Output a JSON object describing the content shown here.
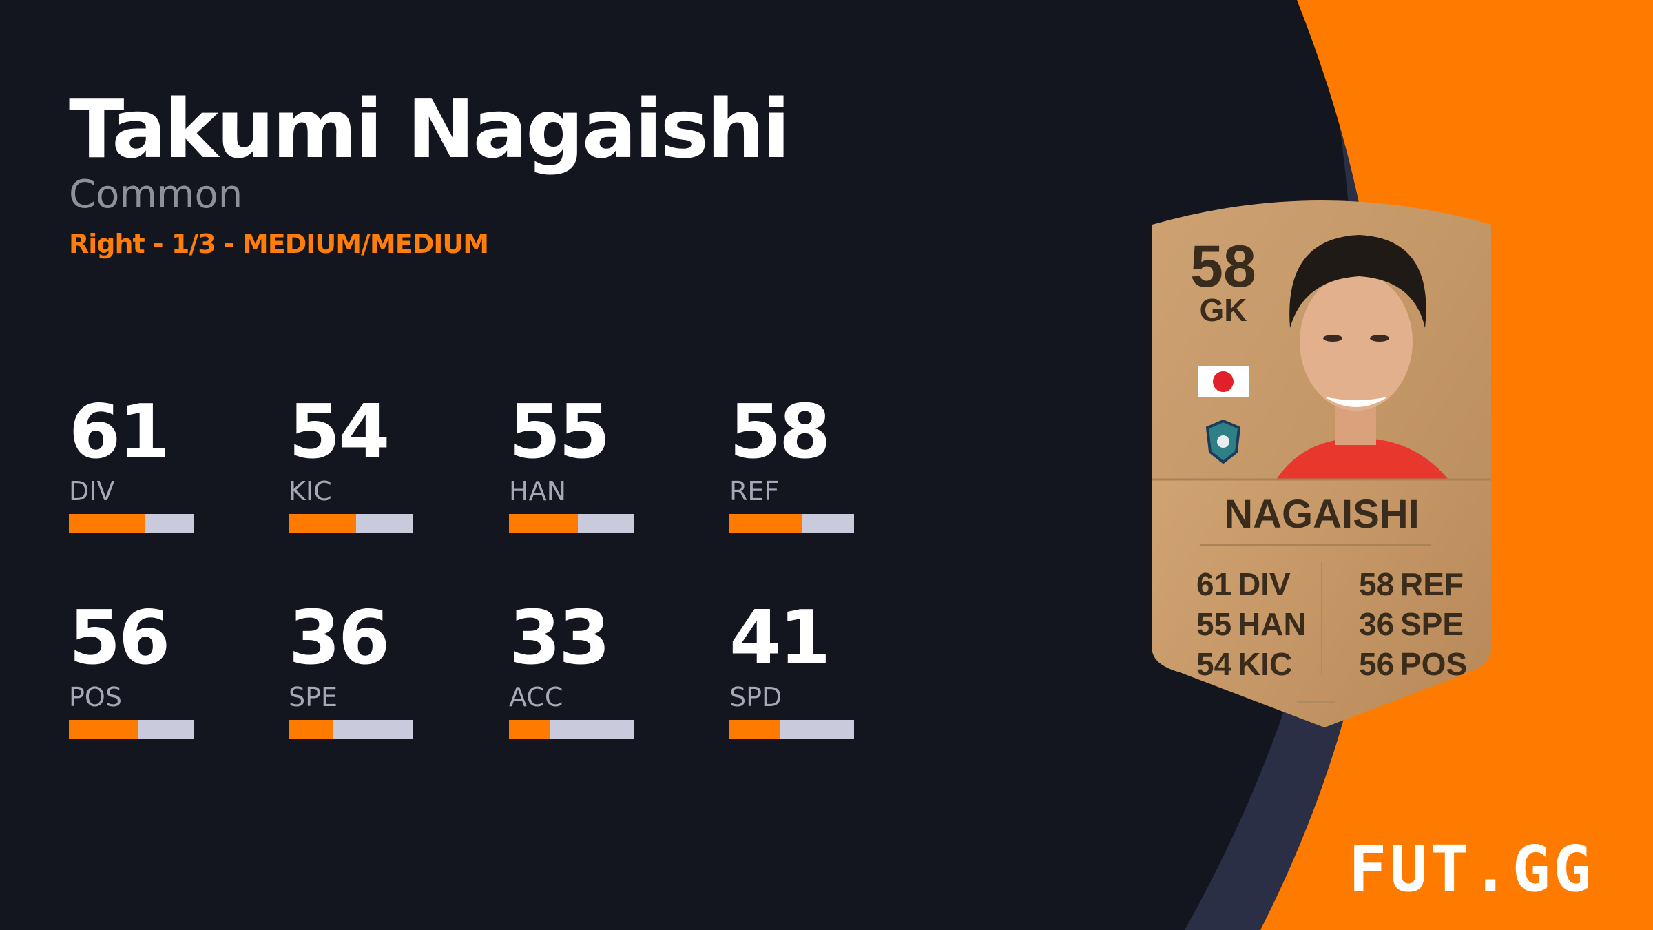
{
  "player": {
    "name": "Takumi Nagaishi",
    "rarity": "Common",
    "info": "Right - 1/3 - MEDIUM/MEDIUM"
  },
  "stats": [
    {
      "value": "61",
      "label": "DIV",
      "fraction": 0.61
    },
    {
      "value": "54",
      "label": "KIC",
      "fraction": 0.54
    },
    {
      "value": "55",
      "label": "HAN",
      "fraction": 0.55
    },
    {
      "value": "58",
      "label": "REF",
      "fraction": 0.58
    },
    {
      "value": "56",
      "label": "POS",
      "fraction": 0.56
    },
    {
      "value": "36",
      "label": "SPE",
      "fraction": 0.36
    },
    {
      "value": "33",
      "label": "ACC",
      "fraction": 0.33
    },
    {
      "value": "41",
      "label": "SPD",
      "fraction": 0.41
    }
  ],
  "card": {
    "rating": "58",
    "position": "GK",
    "name": "NAGAISHI",
    "left": [
      {
        "v": "61",
        "l": "DIV"
      },
      {
        "v": "55",
        "l": "HAN"
      },
      {
        "v": "54",
        "l": "KIC"
      }
    ],
    "right": [
      {
        "v": "58",
        "l": "REF"
      },
      {
        "v": "36",
        "l": "SPE"
      },
      {
        "v": "56",
        "l": "POS"
      }
    ],
    "nation": "japan-flag",
    "club": "club-crest"
  },
  "brand": {
    "logo": "FUT.GG"
  },
  "colors": {
    "background": "#13151f",
    "accent": "#ff7b00",
    "bar_empty": "#c9cbdc",
    "card_gold": "#c99b6a"
  }
}
